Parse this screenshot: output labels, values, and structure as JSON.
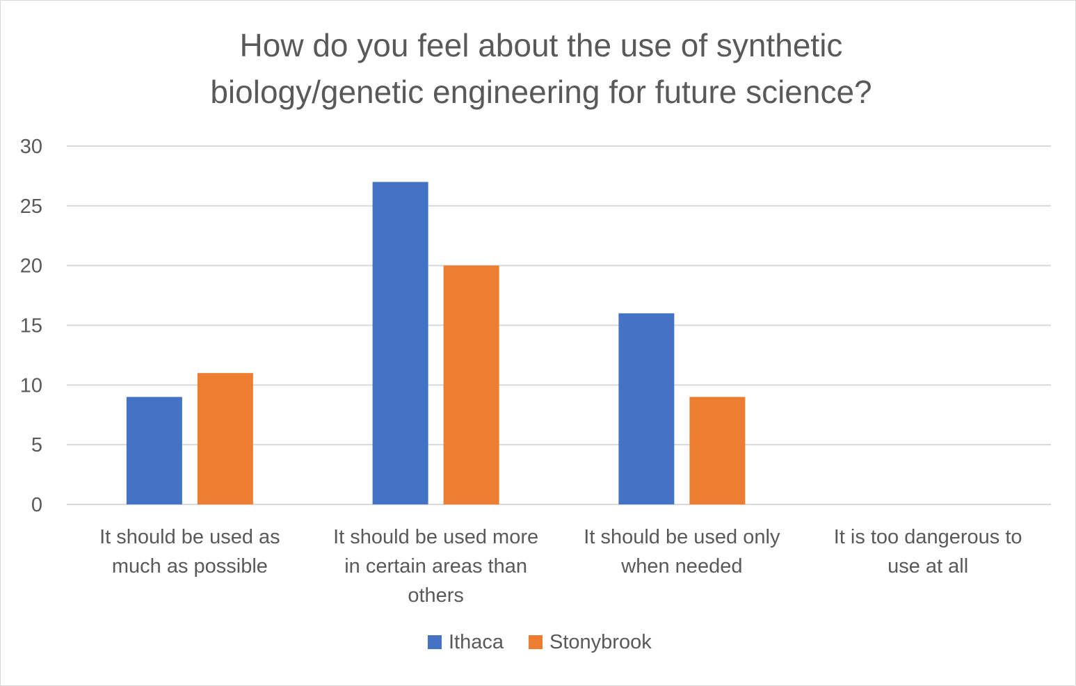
{
  "chart_data": {
    "type": "bar",
    "title": "How do you feel about the use of synthetic biology/genetic engineering for future science?",
    "title_lines": [
      "How do you feel about the use of synthetic",
      "biology/genetic engineering for future science?"
    ],
    "categories": [
      "It should be used as much as possible",
      "It should be used more in certain areas than others",
      "It should be used only when needed",
      "It is too dangerous to use at all"
    ],
    "category_lines": [
      [
        "It should be used as",
        "much as possible"
      ],
      [
        "It should be used more",
        "in certain areas than",
        "others"
      ],
      [
        "It should be used only",
        "when needed"
      ],
      [
        "It is too dangerous to",
        "use at all"
      ]
    ],
    "series": [
      {
        "name": "Ithaca",
        "color": "#4472c4",
        "values": [
          9,
          27,
          16,
          0
        ]
      },
      {
        "name": "Stonybrook",
        "color": "#ed7d31",
        "values": [
          11,
          20,
          9,
          0
        ]
      }
    ],
    "ylim": [
      0,
      30
    ],
    "yticks": [
      0,
      5,
      10,
      15,
      20,
      25,
      30
    ],
    "grid": true,
    "legend_position": "bottom",
    "xlabel": "",
    "ylabel": ""
  }
}
